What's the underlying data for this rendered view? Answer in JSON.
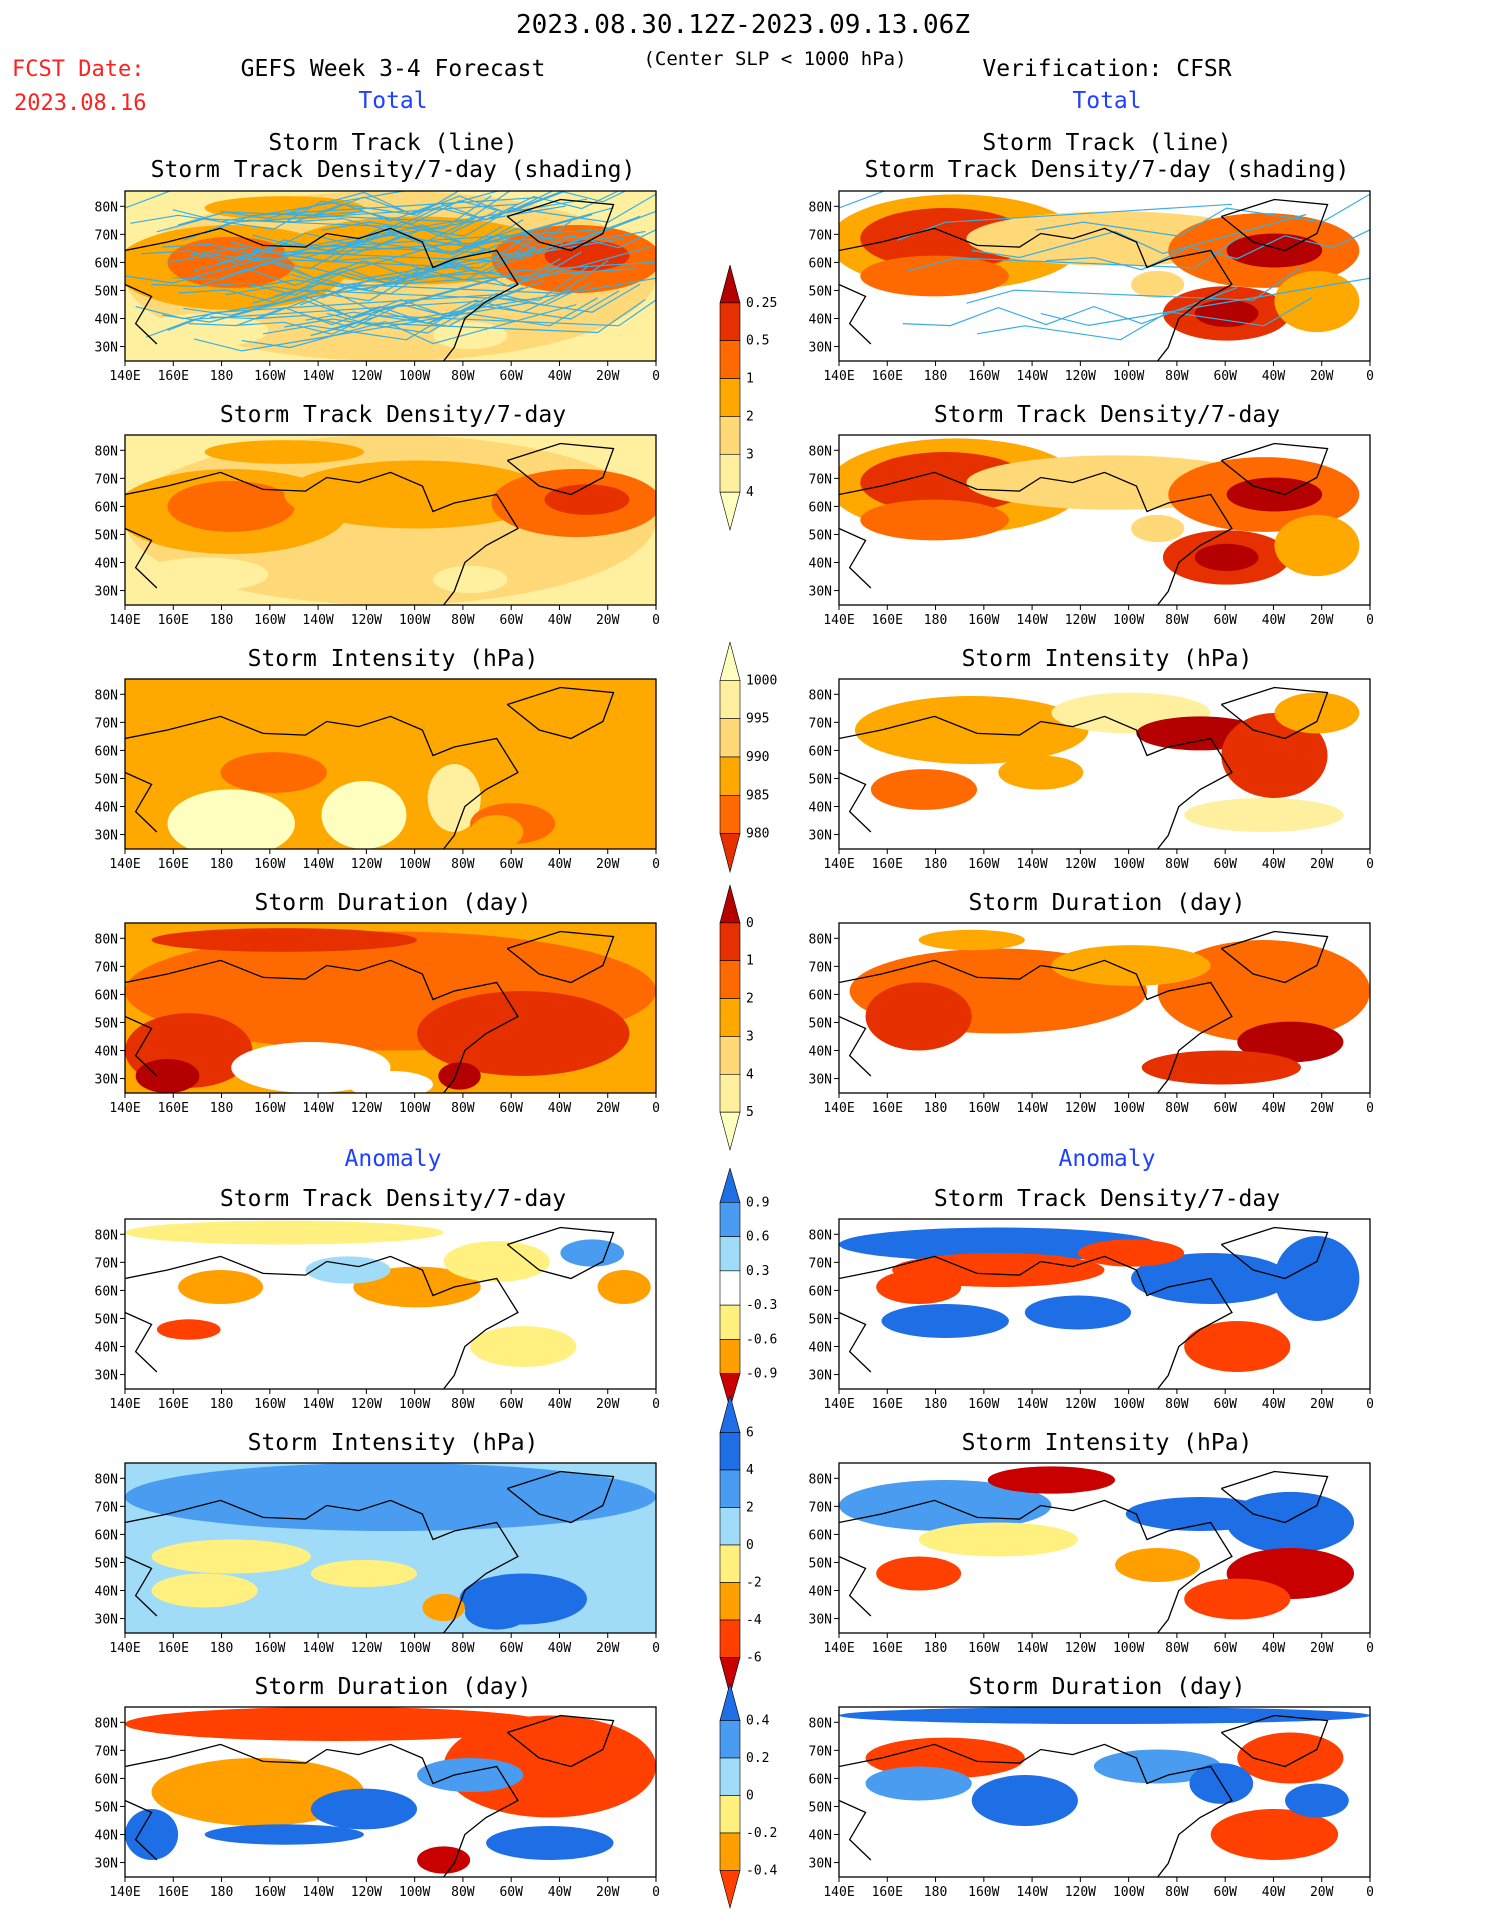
{
  "header": {
    "date_range": "2023.08.30.12Z-2023.09.13.06Z",
    "criterion": "(Center SLP < 1000 hPa)",
    "fcst_label": "FCST Date:",
    "fcst_date": "2023.08.16",
    "left_title": "GEFS Week 3-4 Forecast",
    "right_title": "Verification: CFSR"
  },
  "sections": {
    "total": "Total",
    "anomaly": "Anomaly"
  },
  "panel_titles": {
    "track_line": "Storm Track (line)",
    "track_shading": "Storm Track Density/7-day (shading)",
    "density": "Storm Track Density/7-day",
    "intensity": "Storm Intensity (hPa)",
    "duration": "Storm Duration (day)"
  },
  "axes": {
    "lat_ticks": [
      "80N",
      "70N",
      "60N",
      "50N",
      "40N",
      "30N"
    ],
    "lon_ticks": [
      "140E",
      "160E",
      "180",
      "160W",
      "140W",
      "120W",
      "100W",
      "80W",
      "60W",
      "40W",
      "20W",
      "0"
    ]
  },
  "colorbars": {
    "density_total": [
      "0.25",
      "0.5",
      "1",
      "2",
      "3",
      "4"
    ],
    "intensity_total": [
      "1000",
      "995",
      "990",
      "985",
      "980"
    ],
    "duration_total": [
      "0",
      "1",
      "2",
      "3",
      "4",
      "5"
    ],
    "density_anom": [
      "0.9",
      "0.6",
      "0.3",
      "-0.3",
      "-0.6",
      "-0.9"
    ],
    "intensity_anom": [
      "6",
      "4",
      "2",
      "0",
      "-2",
      "-4",
      "-6"
    ],
    "duration_anom": [
      "0.4",
      "0.2",
      "0",
      "-0.2",
      "-0.4"
    ]
  },
  "colors": {
    "warm_scale": [
      "#ffffc0",
      "#fff0a0",
      "#ffd878",
      "#ffa800",
      "#ff6a00",
      "#e63000",
      "#b40000"
    ],
    "anom_scale": [
      "#1e6ee6",
      "#4a9cf0",
      "#a0dcf8",
      "#ffffff",
      "#fff080",
      "#ffa000",
      "#ff4000",
      "#c80000"
    ],
    "track_line": "#3aaee0",
    "title_red": "#ff2020",
    "section_blue": "#2040ff"
  }
}
